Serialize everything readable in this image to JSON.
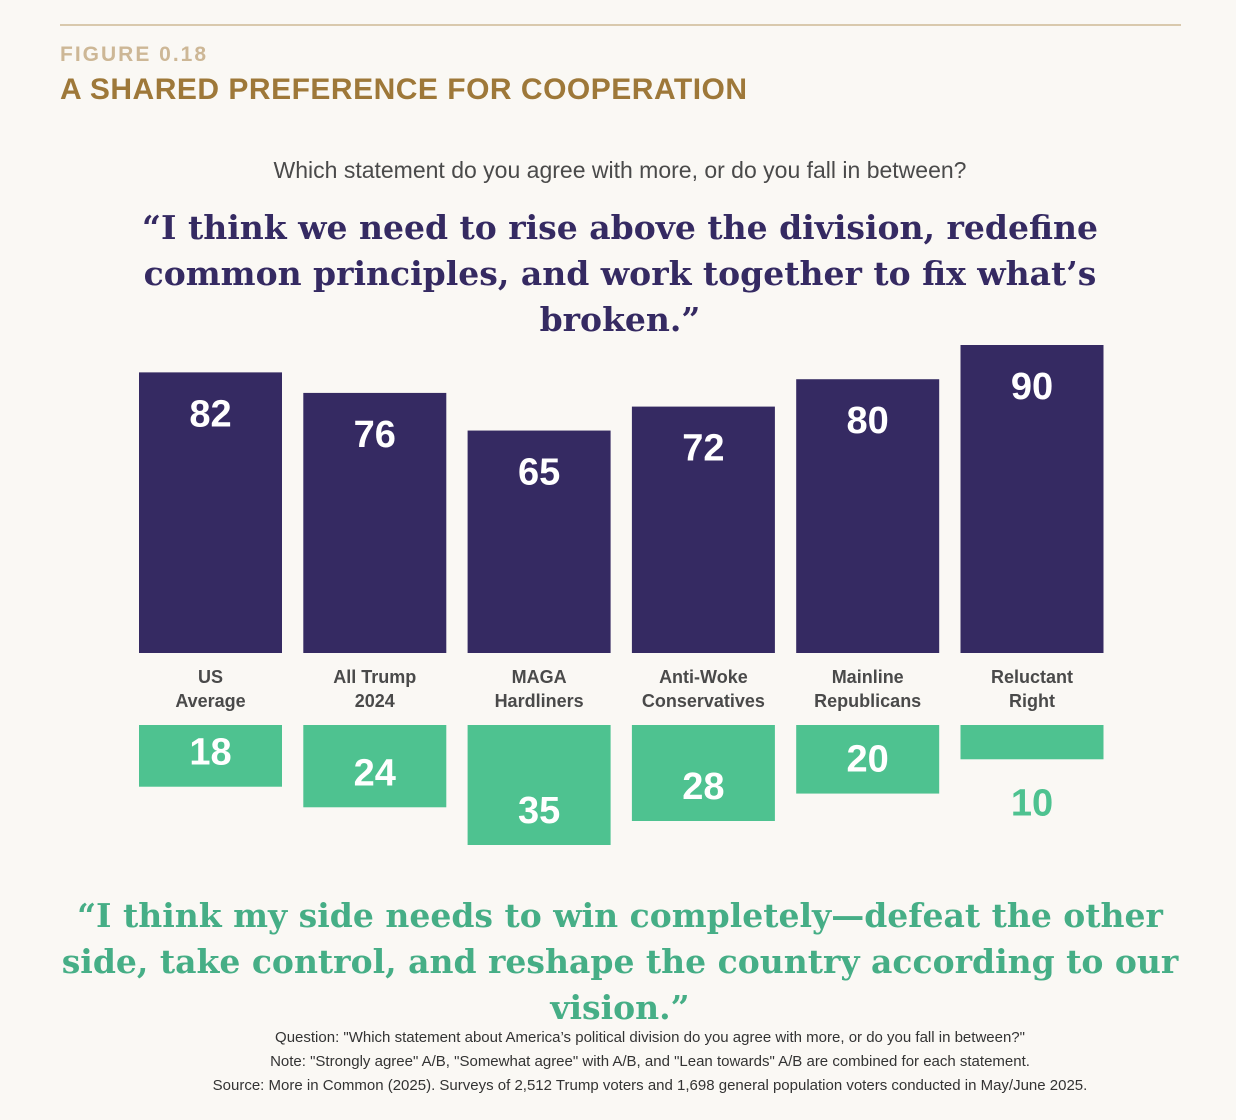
{
  "header": {
    "figure_label": "FIGURE 0.18",
    "title": "A SHARED PREFERENCE FOR COOPERATION"
  },
  "question": "Which statement do you agree with more, or do you fall in between?",
  "quote_top": "“I think we need to rise above the division, redefine common principles, and work together to fix what’s broken.”",
  "quote_bottom": "“I think my side needs to win completely—defeat the other side, take control, and reshape the country according to our vision.”",
  "footnotes": {
    "question": "Question: \"Which statement about America’s political division do you agree with more, or do you fall in between?\"",
    "note": "Note: \"Strongly agree\" A/B, \"Somewhat agree\" with A/B, and \"Lean towards\" A/B are combined for each statement.",
    "source": "Source: More in Common (2025). Surveys of 2,512 Trump voters and 1,698 general population voters conducted in May/June 2025."
  },
  "colors": {
    "cooperation": "#352a62",
    "win": "#4ec290",
    "label_text": "#4a4a4a"
  },
  "chart_data": {
    "type": "bar",
    "categories": [
      [
        "US",
        "Average"
      ],
      [
        "All Trump",
        "2024"
      ],
      [
        "MAGA",
        "Hardliners"
      ],
      [
        "Anti-Woke",
        "Conservatives"
      ],
      [
        "Mainline",
        "Republicans"
      ],
      [
        "Reluctant",
        "Right"
      ]
    ],
    "series": [
      {
        "values": [
          82,
          76,
          65,
          72,
          80,
          90
        ]
      },
      {
        "values": [
          18,
          24,
          35,
          28,
          20,
          10
        ]
      }
    ],
    "layout": "diverging-up-down",
    "ylim": [
      0,
      100
    ]
  }
}
